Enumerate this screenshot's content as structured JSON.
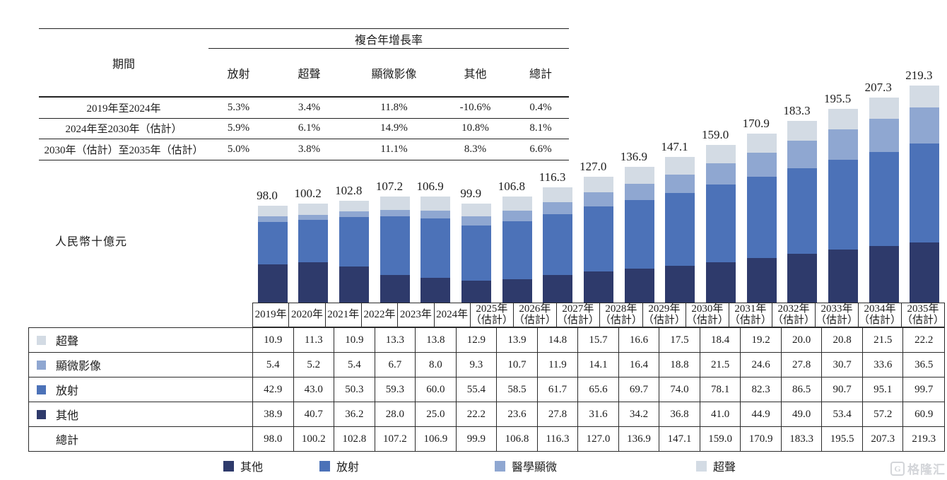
{
  "cagr_table": {
    "group_header": "複合年增長率",
    "period_header": "期間",
    "columns": [
      "放射",
      "超聲",
      "顯微影像",
      "其他",
      "總計"
    ],
    "rows": [
      {
        "period": "2019年至2024年",
        "values": [
          "5.3%",
          "3.4%",
          "11.8%",
          "-10.6%",
          "0.4%"
        ]
      },
      {
        "period": "2024年至2030年（估計）",
        "values": [
          "5.9%",
          "6.1%",
          "14.9%",
          "10.8%",
          "8.1%"
        ]
      },
      {
        "period": "2030年（估計）至2035年（估計）",
        "values": [
          "5.0%",
          "3.8%",
          "11.1%",
          "8.3%",
          "6.6%"
        ]
      }
    ]
  },
  "chart_data": {
    "type": "bar",
    "stacked": true,
    "title": "",
    "ylabel": "人民幣十億元",
    "xlabel": "",
    "categories": [
      "2019年",
      "2020年",
      "2021年",
      "2022年",
      "2023年",
      "2024年",
      "2025年（估計）",
      "2026年（估計）",
      "2027年（估計）",
      "2028年（估計）",
      "2029年（估計）",
      "2030年（估計）",
      "2031年（估計）",
      "2032年（估計）",
      "2033年（估計）",
      "2034年（估計）",
      "2035年（估計）"
    ],
    "series": [
      {
        "name": "其他",
        "color": "#2E3A6B",
        "values": [
          38.9,
          40.7,
          36.2,
          28.0,
          25.0,
          22.2,
          23.6,
          27.8,
          31.6,
          34.2,
          36.8,
          41.0,
          44.9,
          49.0,
          53.4,
          57.2,
          60.9
        ]
      },
      {
        "name": "放射",
        "color": "#4C72B8",
        "values": [
          42.9,
          43.0,
          50.3,
          59.3,
          60.0,
          55.4,
          58.5,
          61.7,
          65.6,
          69.7,
          74.0,
          78.1,
          82.3,
          86.5,
          90.7,
          95.1,
          99.7
        ]
      },
      {
        "name": "醫學顯微",
        "color": "#8FA7D1",
        "values": [
          5.4,
          5.2,
          5.4,
          6.7,
          8.0,
          9.3,
          10.7,
          11.9,
          14.1,
          16.4,
          18.8,
          21.5,
          24.6,
          27.8,
          30.7,
          33.6,
          36.5
        ]
      },
      {
        "name": "超聲",
        "color": "#D3DBE4",
        "values": [
          10.9,
          11.3,
          10.9,
          13.3,
          13.8,
          12.9,
          13.9,
          14.8,
          15.7,
          16.6,
          17.5,
          18.4,
          19.2,
          20.0,
          20.8,
          21.5,
          22.2
        ]
      }
    ],
    "totals": [
      98.0,
      100.2,
      102.8,
      107.2,
      106.9,
      99.9,
      106.8,
      116.3,
      127.0,
      136.9,
      147.1,
      159.0,
      170.9,
      183.3,
      195.5,
      207.3,
      219.3
    ],
    "legend_position": "bottom",
    "grid": false
  },
  "data_table": {
    "rows": [
      {
        "label": "超聲",
        "color": "#D3DBE4",
        "values": [
          10.9,
          11.3,
          10.9,
          13.3,
          13.8,
          12.9,
          13.9,
          14.8,
          15.7,
          16.6,
          17.5,
          18.4,
          19.2,
          20.0,
          20.8,
          21.5,
          22.2
        ]
      },
      {
        "label": "顯微影像",
        "color": "#8FA7D1",
        "values": [
          5.4,
          5.2,
          5.4,
          6.7,
          8.0,
          9.3,
          10.7,
          11.9,
          14.1,
          16.4,
          18.8,
          21.5,
          24.6,
          27.8,
          30.7,
          33.6,
          36.5
        ]
      },
      {
        "label": "放射",
        "color": "#4C72B8",
        "values": [
          42.9,
          43.0,
          50.3,
          59.3,
          60.0,
          55.4,
          58.5,
          61.7,
          65.6,
          69.7,
          74.0,
          78.1,
          82.3,
          86.5,
          90.7,
          95.1,
          99.7
        ]
      },
      {
        "label": "其他",
        "color": "#2E3A6B",
        "values": [
          38.9,
          40.7,
          36.2,
          28.0,
          25.0,
          22.2,
          23.6,
          27.8,
          31.6,
          34.2,
          36.8,
          41.0,
          44.9,
          49.0,
          53.4,
          57.2,
          60.9
        ]
      },
      {
        "label": "總計",
        "color": null,
        "values": [
          98.0,
          100.2,
          102.8,
          107.2,
          106.9,
          99.9,
          106.8,
          116.3,
          127.0,
          136.9,
          147.1,
          159.0,
          170.9,
          183.3,
          195.5,
          207.3,
          219.3
        ]
      }
    ]
  },
  "legend": {
    "items": [
      {
        "label": "其他",
        "color": "#2E3A6B"
      },
      {
        "label": "放射",
        "color": "#4C72B8"
      },
      {
        "label": "醫學顯微",
        "color": "#8FA7D1"
      },
      {
        "label": "超聲",
        "color": "#D3DBE4"
      }
    ]
  },
  "watermark": {
    "icon": "G",
    "text": "格隆汇"
  }
}
